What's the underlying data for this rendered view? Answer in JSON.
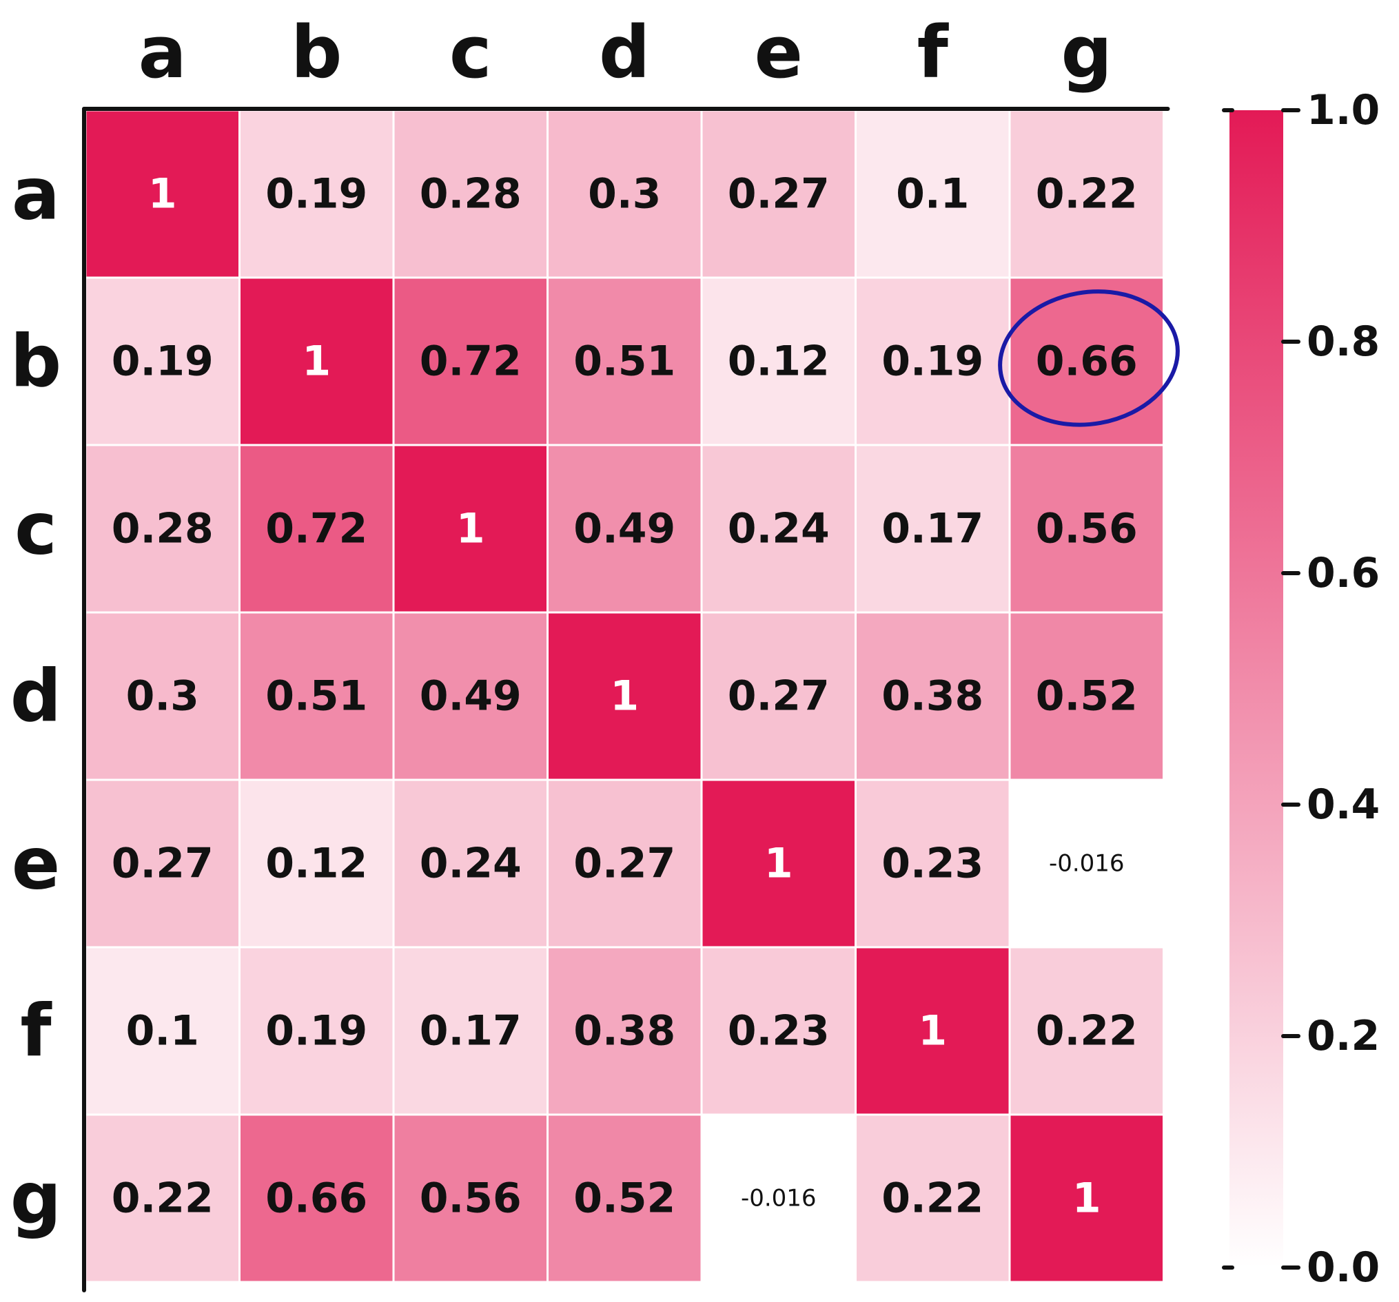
{
  "chart_data": {
    "type": "heatmap",
    "title": "",
    "x_categories": [
      "a",
      "b",
      "c",
      "d",
      "e",
      "f",
      "g"
    ],
    "y_categories": [
      "a",
      "b",
      "c",
      "d",
      "e",
      "f",
      "g"
    ],
    "matrix": [
      [
        1,
        0.19,
        0.28,
        0.3,
        0.27,
        0.1,
        0.22
      ],
      [
        0.19,
        1,
        0.72,
        0.51,
        0.12,
        0.19,
        0.66
      ],
      [
        0.28,
        0.72,
        1,
        0.49,
        0.24,
        0.17,
        0.56
      ],
      [
        0.3,
        0.51,
        0.49,
        1,
        0.27,
        0.38,
        0.52
      ],
      [
        0.27,
        0.12,
        0.24,
        0.27,
        1,
        0.23,
        -0.016
      ],
      [
        0.1,
        0.19,
        0.17,
        0.38,
        0.23,
        1,
        0.22
      ],
      [
        0.22,
        0.66,
        0.56,
        0.52,
        -0.016,
        0.22,
        1
      ]
    ],
    "cell_labels": [
      [
        "1",
        "0.19",
        "0.28",
        "0.3",
        "0.27",
        "0.1",
        "0.22"
      ],
      [
        "0.19",
        "1",
        "0.72",
        "0.51",
        "0.12",
        "0.19",
        "0.66"
      ],
      [
        "0.28",
        "0.72",
        "1",
        "0.49",
        "0.24",
        "0.17",
        "0.56"
      ],
      [
        "0.3",
        "0.51",
        "0.49",
        "1",
        "0.27",
        "0.38",
        "0.52"
      ],
      [
        "0.27",
        "0.12",
        "0.24",
        "0.27",
        "1",
        "0.23",
        "-0.016"
      ],
      [
        "0.1",
        "0.19",
        "0.17",
        "0.38",
        "0.23",
        "1",
        "0.22"
      ],
      [
        "0.22",
        "0.66",
        "0.56",
        "0.52",
        "-0.016",
        "0.22",
        "1"
      ]
    ],
    "colorbar": {
      "range": [
        0.0,
        1.0
      ],
      "ticks": [
        0.0,
        0.2,
        0.4,
        0.6,
        0.8,
        1.0
      ],
      "tick_labels": [
        "0.0",
        "0.2",
        "0.4",
        "0.6",
        "0.8",
        "1.0"
      ],
      "color_low": "#ffffff",
      "color_high": "#e31a56"
    },
    "highlight": {
      "row": 1,
      "col": 6,
      "color": "#1a1aa6"
    },
    "colors": {
      "text_dark": "#111111",
      "text_light": "#ffffff",
      "grid": "#ffffff",
      "axis": "#111111"
    }
  }
}
